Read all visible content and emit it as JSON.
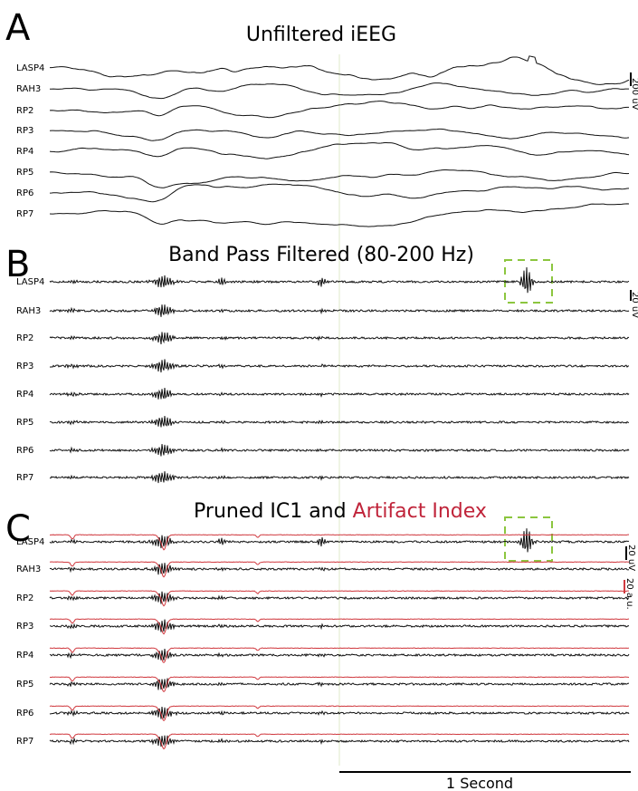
{
  "panels": [
    {
      "letter": "A",
      "title": "Unfiltered iEEG",
      "channels": [
        "LASP4",
        "RAH3",
        "RP2",
        "RP3",
        "RP4",
        "RP5",
        "RP6",
        "RP7"
      ],
      "scale_label": "200 uV"
    },
    {
      "letter": "B",
      "title": "Band Pass Filtered (80-200 Hz)",
      "channels": [
        "LASP4",
        "RAH3",
        "RP2",
        "RP3",
        "RP4",
        "RP5",
        "RP6",
        "RP7"
      ],
      "scale_label": "20 uV"
    },
    {
      "letter": "C",
      "title": "Pruned IC1 and",
      "title_highlight": "Artifact Index",
      "channels": [
        "LASP4",
        "RAH3",
        "RP2",
        "RP3",
        "RP4",
        "RP5",
        "RP6",
        "RP7"
      ],
      "scale_label": "20 uV",
      "scale_label_2": "20 a.u."
    }
  ],
  "time_scale": "1 Second"
}
